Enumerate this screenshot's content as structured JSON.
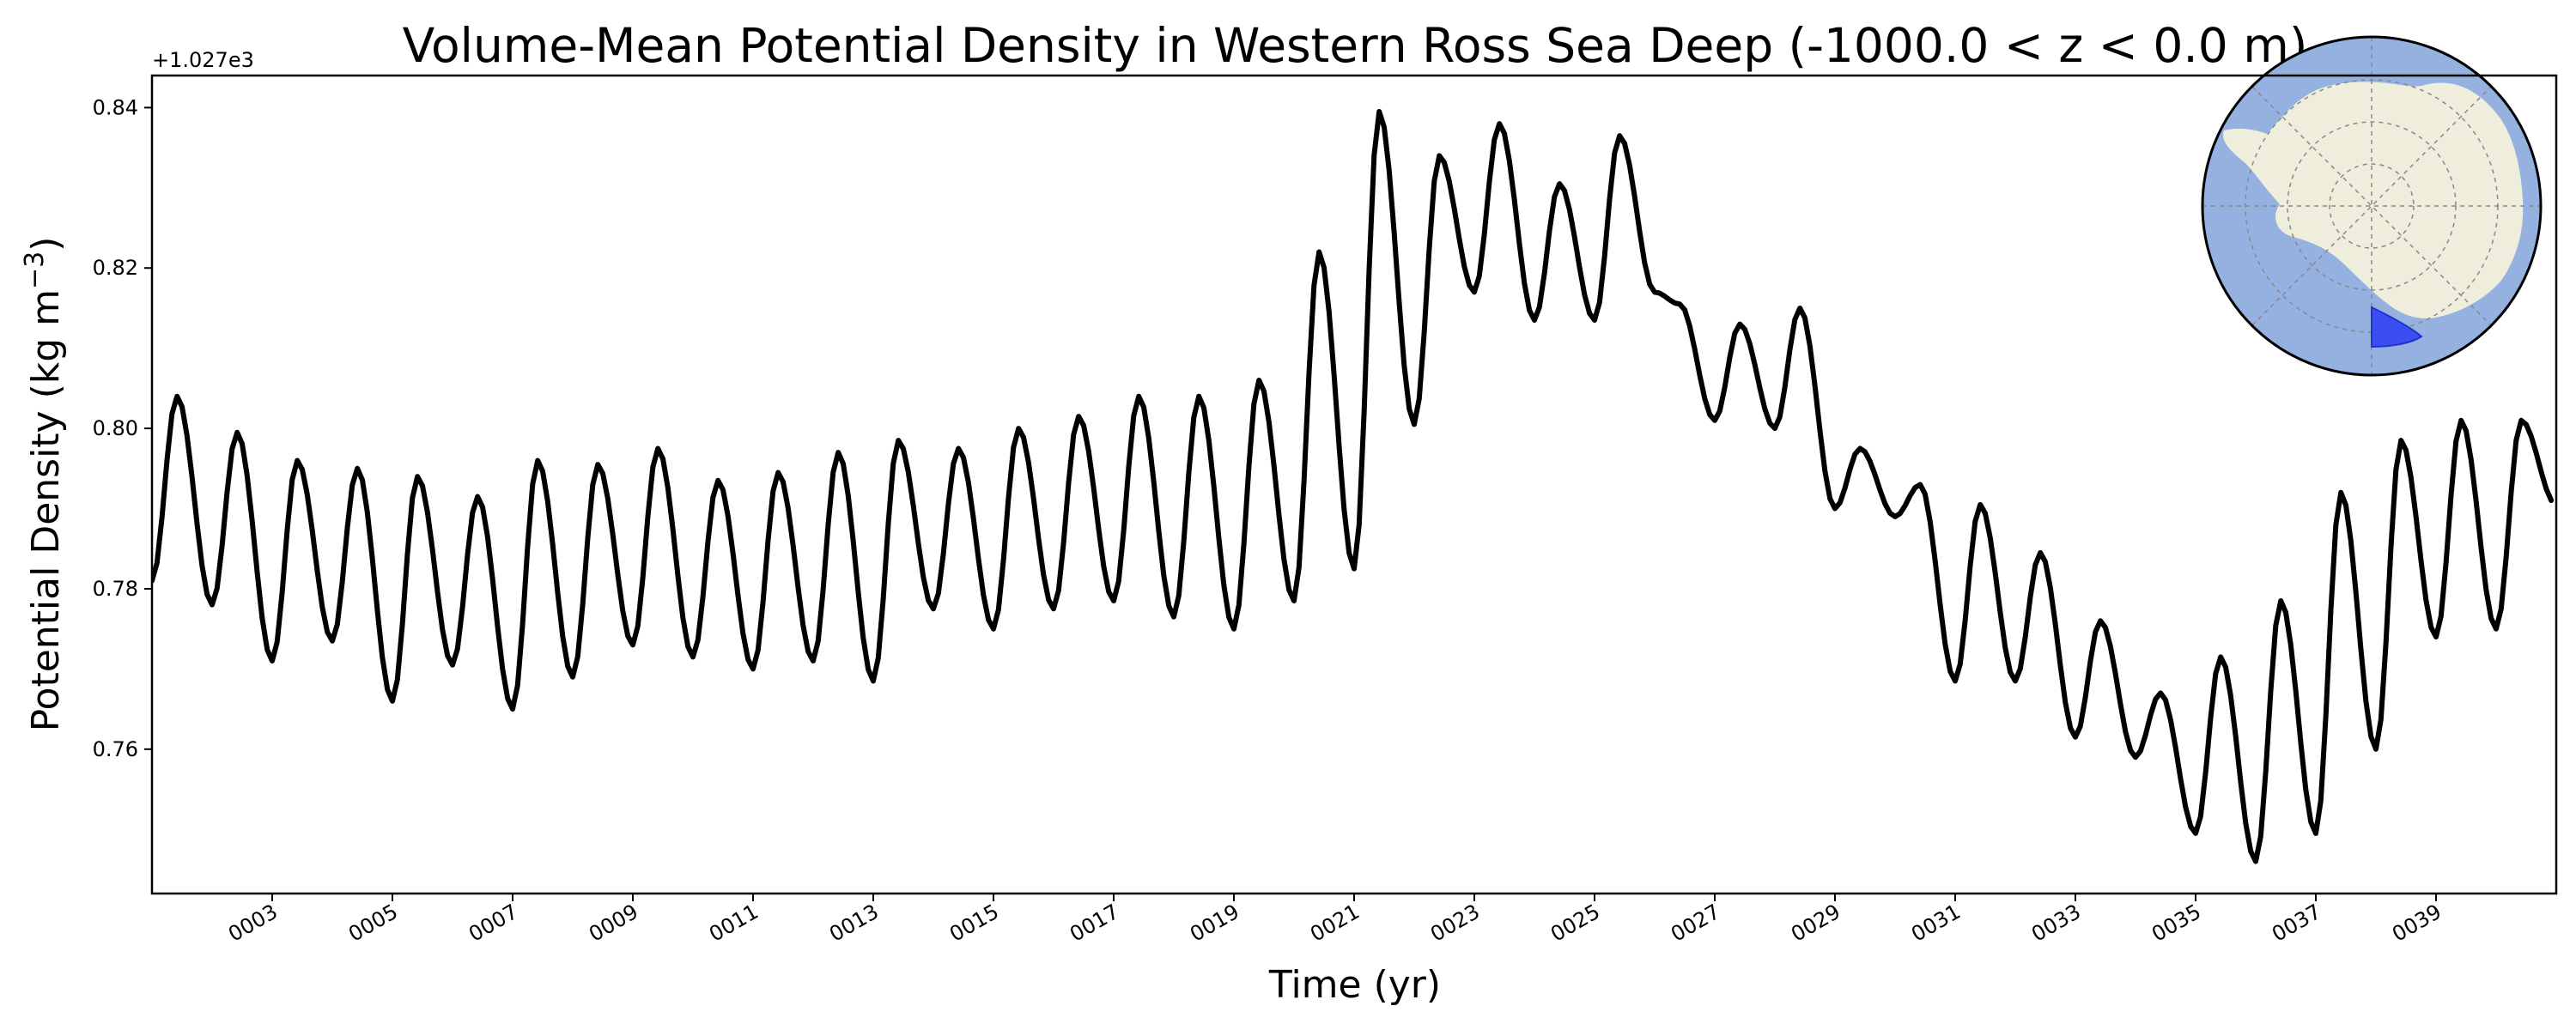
{
  "chart_data": {
    "type": "line",
    "title": "Volume-Mean Potential Density in Western Ross Sea Deep (-1000.0 < z < 0.0 m)",
    "xlabel": "Time (yr)",
    "ylabel": "Potential Density (kg m",
    "ylabel_sup": "−3",
    "ylabel_close": ")",
    "y_offset_label": "+1.027e3",
    "xlim": [
      1,
      41
    ],
    "ylim": [
      0.742,
      0.844
    ],
    "x_ticks": [
      3,
      5,
      7,
      9,
      11,
      13,
      15,
      17,
      19,
      21,
      23,
      25,
      27,
      29,
      31,
      33,
      35,
      37,
      39
    ],
    "x_tick_labels": [
      "0003",
      "0005",
      "0007",
      "0009",
      "0011",
      "0013",
      "0015",
      "0017",
      "0019",
      "0021",
      "0023",
      "0025",
      "0027",
      "0029",
      "0031",
      "0033",
      "0035",
      "0037",
      "0039"
    ],
    "y_ticks": [
      0.76,
      0.78,
      0.8,
      0.82,
      0.84
    ],
    "y_tick_labels": [
      "0.76",
      "0.78",
      "0.80",
      "0.82",
      "0.84"
    ],
    "grid": false,
    "line_color": "#000000",
    "yearly_peaks": [
      0.804,
      0.7995,
      0.796,
      0.795,
      0.794,
      0.7915,
      0.796,
      0.7955,
      0.7975,
      0.7935,
      0.7945,
      0.797,
      0.7985,
      0.7975,
      0.8,
      0.8015,
      0.804,
      0.804,
      0.806,
      0.822,
      0.8395,
      0.834,
      0.838,
      0.8305,
      0.8365,
      0.8155,
      0.813,
      0.815,
      0.7975,
      0.793,
      0.7905,
      0.7845,
      0.776,
      0.767,
      0.7715,
      0.7785,
      0.792,
      0.7985,
      0.801,
      0.801
    ],
    "yearly_troughs": [
      0.781,
      0.778,
      0.771,
      0.7735,
      0.766,
      0.7705,
      0.765,
      0.769,
      0.773,
      0.7715,
      0.77,
      0.771,
      0.7685,
      0.7775,
      0.775,
      0.7775,
      0.7785,
      0.7765,
      0.775,
      0.7785,
      0.7825,
      0.8005,
      0.817,
      0.8135,
      0.8135,
      0.817,
      0.801,
      0.8,
      0.79,
      0.789,
      0.7685,
      0.7685,
      0.7615,
      0.759,
      0.7495,
      0.746,
      0.7495,
      0.76,
      0.774,
      0.775,
      0.7905
    ]
  },
  "inset": {
    "ocean_color": "#95b1e0",
    "land_color": "#efeedc",
    "region_color": "#3b4ef2"
  }
}
